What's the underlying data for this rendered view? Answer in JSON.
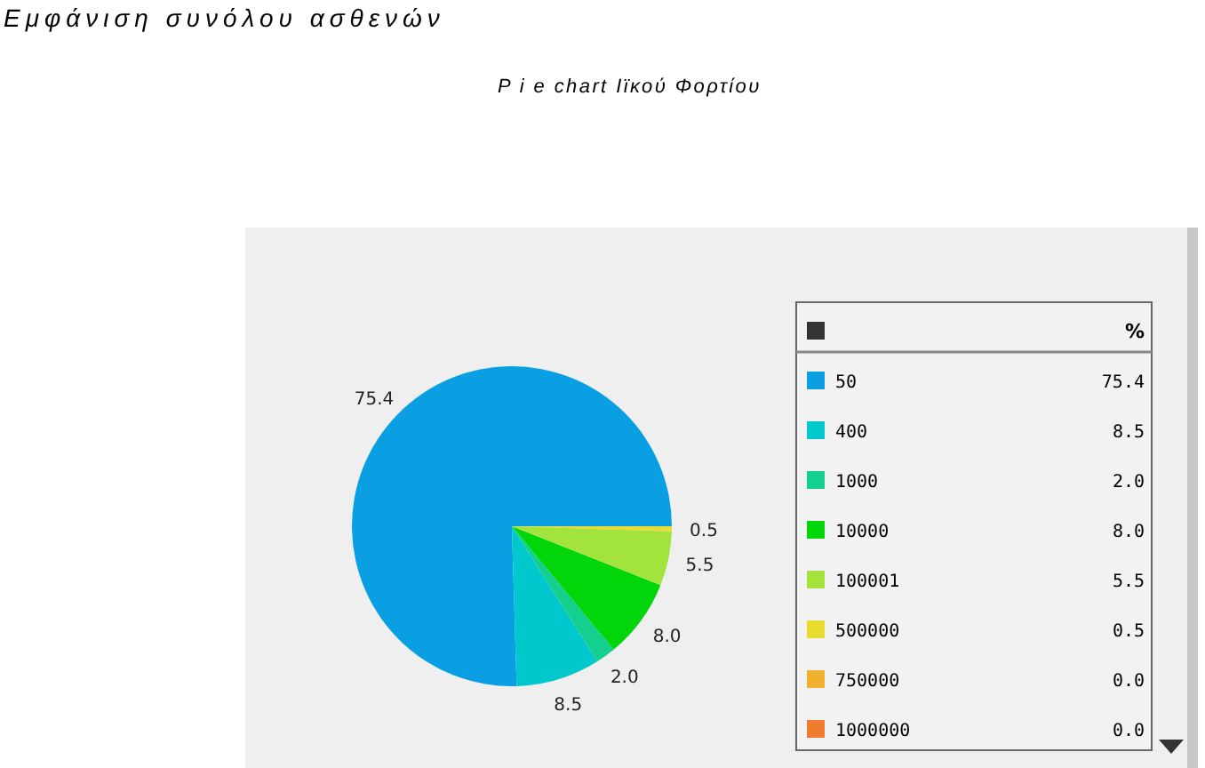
{
  "chart_data": {
    "type": "pie",
    "title": "Εμφάνιση συνόλου ασθενών",
    "subtitle": "P i e chart Ιϊκού Φορτίου",
    "legend_title": "%",
    "legend": "right",
    "categories": [
      "50",
      "400",
      "1000",
      "10000",
      "100001",
      "500000",
      "750000",
      "1000000"
    ],
    "values": [
      75.4,
      8.5,
      2.0,
      8.0,
      5.5,
      0.5,
      0.0,
      0.0
    ],
    "value_labels": [
      "75.4",
      "8.5",
      "2.0",
      "8.0",
      "5.5",
      "0.5",
      "0.0",
      "0.0"
    ],
    "colors": [
      "#0a9fe2",
      "#00c8cc",
      "#14d08e",
      "#00d60a",
      "#a2e33c",
      "#e8dc30",
      "#f0b030",
      "#f07c30"
    ]
  }
}
